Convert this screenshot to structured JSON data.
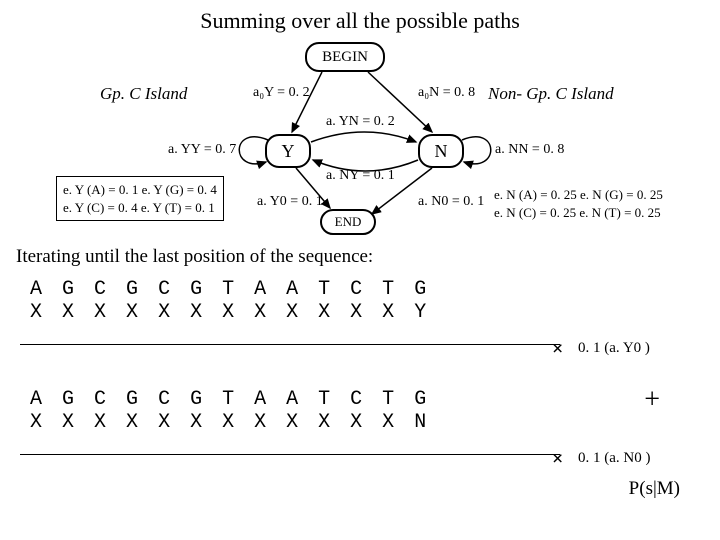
{
  "title": "Summing over all the possible paths",
  "nodes": {
    "begin": "BEGIN",
    "y": "Y",
    "n": "N",
    "end": "END"
  },
  "labels": {
    "gpc_left": "Gp. C Island",
    "gpc_right": "Non- Gp. C Island",
    "a0Y": "a₀Y = 0. 2",
    "a0N": "a₀N = 0. 8",
    "aYN": "a. YN = 0. 2",
    "aNY": "a. NY = 0. 1",
    "aYY": "a. YY =  0. 7",
    "aNN": "a. NN = 0. 8",
    "aY0": "a. Y0 = 0. 1",
    "aN0": "a. N0 = 0. 1"
  },
  "emissions": {
    "y1": "e. Y (A) = 0. 1  e. Y (G) = 0. 4",
    "y2": "e. Y (C) = 0. 4  e. Y (T) = 0. 1",
    "n1": "e. N (A) = 0. 25  e. N (G) = 0. 25",
    "n2": "e. N (C) = 0. 25  e. N (T) = 0. 25"
  },
  "iterating": "Iterating until the last position of the sequence:",
  "seq_top": [
    "A",
    "G",
    "C",
    "G",
    "C",
    "G",
    "T",
    "A",
    "A",
    "T",
    "C",
    "T",
    "G"
  ],
  "seq1_row2": [
    "X",
    "X",
    "X",
    "X",
    "X",
    "X",
    "X",
    "X",
    "X",
    "X",
    "X",
    "X",
    "Y"
  ],
  "seq2_row2": [
    "X",
    "X",
    "X",
    "X",
    "X",
    "X",
    "X",
    "X",
    "X",
    "X",
    "X",
    "X",
    "N"
  ],
  "hints": {
    "times": "×",
    "h1": "0. 1 (a. Y0 )",
    "h2": "0. 1 (a. N0 )",
    "plus": "+",
    "psm": "P(s|M)"
  },
  "colors": {
    "fg": "#000000",
    "bg": "#ffffff"
  }
}
